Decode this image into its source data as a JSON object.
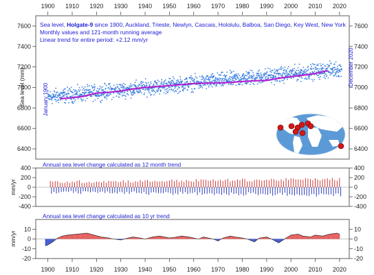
{
  "chart_data": [
    {
      "type": "scatter",
      "panel": "sea-level",
      "info_lines": [
        "Sea level, ",
        "Holgate-9",
        " since 1900, Auckland, Trieste, Newlyn, Cascais, Hololulu, Balboa, San Diego, Key West, New York"
      ],
      "subtitle_lines": [
        "Monthly values and 121-month running average",
        "Linear trend for entire period: +2.12 mm/yr"
      ],
      "ylabel": "Sea level (mm)",
      "start_label": "January 1900",
      "end_label": "December 2020",
      "xlim": [
        1895,
        2024
      ],
      "xticks": [
        1900,
        1910,
        1920,
        1930,
        1940,
        1950,
        1960,
        1970,
        1980,
        1990,
        2000,
        2010,
        2020
      ],
      "ylim": [
        6300,
        7700
      ],
      "yticks": [
        6400,
        6600,
        6800,
        7000,
        7200,
        7400,
        7600
      ],
      "series": [
        {
          "kind": "monthly-points",
          "color": "#3a7fe0",
          "x_start": 1900,
          "x_end": 2020.92,
          "trend_start": 6905,
          "trend_end": 7180,
          "spread_mm": 55
        },
        {
          "kind": "running-average",
          "color": "#b020d0",
          "x": [
            1905,
            1908,
            1912,
            1915,
            1920,
            1925,
            1930,
            1935,
            1940,
            1945,
            1950,
            1955,
            1960,
            1965,
            1970,
            1975,
            1980,
            1985,
            1990,
            1995,
            2000,
            2005,
            2010,
            2015
          ],
          "values": [
            6890,
            6895,
            6905,
            6915,
            6945,
            6952,
            6965,
            6985,
            7000,
            7008,
            7018,
            7028,
            7038,
            7042,
            7045,
            7048,
            7058,
            7065,
            7068,
            7090,
            7105,
            7120,
            7135,
            7165
          ]
        }
      ],
      "inset_map": {
        "ocean_color": "#5b9ad6",
        "land_color": "#ffffff",
        "marker_color": "#d21818",
        "markers": 9
      }
    },
    {
      "type": "bar",
      "panel": "annual-change-12",
      "title": "Annual sea level change calculated as 12 month trend",
      "ylabel": "mm/yr",
      "xlim": [
        1895,
        2024
      ],
      "ylim": [
        -400,
        400
      ],
      "yticks": [
        -400,
        -200,
        0,
        200,
        400
      ],
      "pos_color": "#c82020",
      "neg_color": "#1628b0",
      "start": 1901,
      "end": 2020,
      "amplitude": 140
    },
    {
      "type": "area",
      "panel": "annual-change-120",
      "title": "Annual sea level change calculated as 10 yr trend",
      "ylabel": "mm/yr",
      "xlim": [
        1895,
        2024
      ],
      "ylim": [
        -20,
        20
      ],
      "yticks": [
        -20,
        -10,
        0,
        10
      ],
      "pos_color": "#e23b3b",
      "neg_color": "#1836c4",
      "x": [
        1899,
        1900,
        1902,
        1904,
        1906,
        1908,
        1912,
        1916,
        1919,
        1922,
        1925,
        1927,
        1930,
        1933,
        1935,
        1938,
        1940,
        1943,
        1946,
        1948,
        1950,
        1953,
        1955,
        1958,
        1960,
        1962,
        1964,
        1966,
        1968,
        1970,
        1972,
        1975,
        1977,
        1980,
        1982,
        1985,
        1987,
        1990,
        1992,
        1995,
        1998,
        2000,
        2003,
        2005,
        2008,
        2010,
        2013,
        2016,
        2019,
        2020
      ],
      "values": [
        -7,
        -6,
        -3,
        1,
        3,
        4,
        5,
        6,
        4,
        2,
        1,
        0,
        -1,
        1,
        2,
        1,
        0,
        2,
        3,
        2,
        1,
        2,
        3,
        2,
        1,
        0,
        2,
        1,
        0,
        -2,
        1,
        3,
        2,
        1,
        0,
        -3,
        1,
        2,
        0,
        -4,
        1,
        4,
        5,
        3,
        2,
        4,
        3,
        5,
        6,
        5
      ]
    }
  ]
}
